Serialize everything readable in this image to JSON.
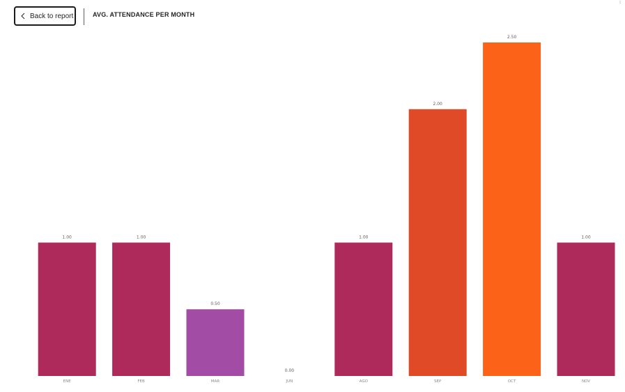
{
  "header": {
    "back_label": "Back to report",
    "title": "AVG. ATTENDANCE PER MONTH"
  },
  "chart_data": {
    "type": "bar",
    "title": "AVG. ATTENDANCE PER MONTH",
    "categories": [
      "ENE",
      "FEB",
      "MAR",
      "JUN",
      "AGO",
      "SEP",
      "OCT",
      "NOV"
    ],
    "values": [
      1.0,
      1.0,
      0.5,
      0.0,
      1.0,
      2.0,
      2.5,
      1.0
    ],
    "data_labels": [
      "1.00",
      "1.00",
      "0.50",
      "0.00",
      "1.00",
      "2.00",
      "2.50",
      "1.00"
    ],
    "colors": [
      "#ad2a5a",
      "#ad2a5a",
      "#a24ca6",
      "#ad2a5a",
      "#ad2a5a",
      "#e04a26",
      "#fd6219",
      "#ad2a5a"
    ],
    "xlabel": "",
    "ylabel": "",
    "ylim": [
      0,
      2.5
    ],
    "grid": false,
    "legend": "none"
  }
}
